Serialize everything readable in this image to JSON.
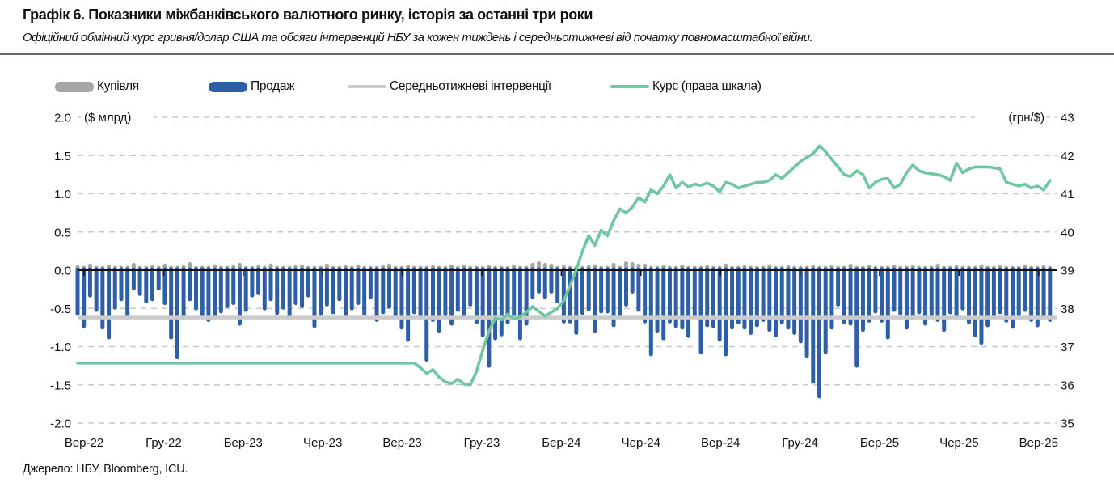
{
  "header": {
    "title": "Графік 6. Показники міжбанківського валютного ринку, історія за останні три роки",
    "subtitle": "Офіційний обмінний курс гривня/долар США та обсяги інтервенцій НБУ за кожен тиждень і середньотижневі від початку повномасштабної війни."
  },
  "legend": {
    "buy": {
      "label": "Купівля"
    },
    "sell": {
      "label": "Продаж"
    },
    "avg": {
      "label": "Середньотижневі інтервенції"
    },
    "rate": {
      "label": "Курс (права шкала)"
    }
  },
  "source": "Джерело: НБУ, Bloomberg, ICU.",
  "chart_data": {
    "type": "bar",
    "description": "Weekly NBU FX interventions ($bn, left axis) and official UAH/USD exchange rate (right axis), Sep-2022 to Sep-2025",
    "weeks": 157,
    "x_tick_labels": [
      "Вер-22",
      "Гру-22",
      "Бер-23",
      "Чер-23",
      "Вер-23",
      "Гру-23",
      "Бер-24",
      "Чер-24",
      "Вер-24",
      "Гру-24",
      "Бер-25",
      "Чер-25",
      "Вер-25"
    ],
    "left_axis": {
      "unit": "($ млрд)",
      "ticks": [
        "2.0",
        "1.5",
        "1.0",
        "0.5",
        "0.0",
        "-0.5",
        "-1.0",
        "-1.5",
        "-2.0"
      ],
      "range": [
        -2.0,
        2.0
      ]
    },
    "right_axis": {
      "unit": "(грн/$)",
      "ticks": [
        "43",
        "42",
        "41",
        "40",
        "39",
        "38",
        "37",
        "36",
        "35"
      ],
      "range": [
        35,
        43
      ]
    },
    "colors": {
      "sell": "#2E5FA6",
      "buy": "#A6A6A6",
      "avg": "#CBCBCB",
      "rate": "#6FC7A2",
      "grid": "#C5CACE",
      "axis": "#111111"
    },
    "series": {
      "buy": {
        "name": "Купівля",
        "type": "bar",
        "axis": "left",
        "values": [
          0.03,
          0.02,
          0.05,
          0.02,
          0.02,
          0.04,
          0.02,
          0.02,
          0.02,
          0.06,
          0.02,
          0.02,
          0.03,
          0.02,
          0.05,
          0.02,
          0.02,
          0.03,
          0.07,
          0.02,
          0.02,
          0.02,
          0.04,
          0.02,
          0.02,
          0.03,
          0.06,
          0.02,
          0.02,
          0.03,
          0.02,
          0.05,
          0.02,
          0.02,
          0.02,
          0.03,
          0.04,
          0.02,
          0.02,
          0.02,
          0.05,
          0.02,
          0.02,
          0.03,
          0.02,
          0.04,
          0.02,
          0.02,
          0.02,
          0.03,
          0.05,
          0.02,
          0.02,
          0.03,
          0.02,
          0.02,
          0.02,
          0.03,
          0.02,
          0.02,
          0.04,
          0.02,
          0.04,
          0.02,
          0.02,
          0.02,
          0.03,
          0.02,
          0.02,
          0.02,
          0.04,
          0.02,
          0.02,
          0.06,
          0.08,
          0.06,
          0.05,
          0.02,
          0.03,
          0.02,
          0.02,
          0.02,
          0.03,
          0.04,
          0.02,
          0.02,
          0.06,
          0.02,
          0.08,
          0.07,
          0.05,
          0.05,
          0.02,
          0.02,
          0.03,
          0.02,
          0.02,
          0.04,
          0.02,
          0.02,
          0.02,
          0.03,
          0.02,
          0.02,
          0.05,
          0.02,
          0.02,
          0.03,
          0.02,
          0.02,
          0.02,
          0.04,
          0.02,
          0.02,
          0.03,
          0.02,
          0.02,
          0.02,
          0.03,
          0.02,
          0.02,
          0.03,
          0.02,
          0.02,
          0.05,
          0.02,
          0.02,
          0.03,
          0.02,
          0.02,
          0.02,
          0.04,
          0.02,
          0.02,
          0.03,
          0.02,
          0.02,
          0.02,
          0.05,
          0.02,
          0.02,
          0.03,
          0.02,
          0.02,
          0.02,
          0.04,
          0.02,
          0.02,
          0.03,
          0.02,
          0.02,
          0.02,
          0.04,
          0.02,
          0.02,
          0.03,
          0.02
        ]
      },
      "sell": {
        "name": "Продаж",
        "type": "bar",
        "axis": "left",
        "values": [
          -0.57,
          -0.73,
          -0.33,
          -0.52,
          -0.75,
          -0.88,
          -0.49,
          -0.38,
          -0.62,
          -0.24,
          -0.31,
          -0.41,
          -0.38,
          -0.24,
          -0.43,
          -0.88,
          -1.14,
          -0.62,
          -0.38,
          -0.5,
          -0.61,
          -0.65,
          -0.59,
          -0.54,
          -0.47,
          -0.43,
          -0.7,
          -0.52,
          -0.33,
          -0.3,
          -0.5,
          -0.38,
          -0.56,
          -0.49,
          -0.62,
          -0.43,
          -0.47,
          -0.33,
          -0.73,
          -0.57,
          -0.45,
          -0.55,
          -0.38,
          -0.62,
          -0.5,
          -0.43,
          -0.57,
          -0.35,
          -0.65,
          -0.55,
          -0.48,
          -0.6,
          -0.75,
          -0.91,
          -0.55,
          -0.62,
          -1.17,
          -0.65,
          -0.8,
          -0.58,
          -0.7,
          -0.52,
          -0.6,
          -0.45,
          -0.68,
          -0.85,
          -1.25,
          -0.89,
          -0.84,
          -0.68,
          -0.59,
          -0.89,
          -0.7,
          -0.35,
          -0.28,
          -0.35,
          -0.28,
          -0.41,
          -0.67,
          -0.67,
          -0.82,
          -0.56,
          -0.51,
          -0.8,
          -0.54,
          -0.54,
          -0.72,
          -0.61,
          -0.45,
          -0.28,
          -0.52,
          -0.67,
          -1.1,
          -0.8,
          -0.89,
          -0.67,
          -0.73,
          -0.75,
          -0.86,
          -0.59,
          -1.07,
          -0.72,
          -0.73,
          -0.91,
          -1.1,
          -0.75,
          -0.68,
          -0.75,
          -0.82,
          -0.72,
          -0.65,
          -0.78,
          -0.85,
          -0.68,
          -0.75,
          -0.82,
          -0.93,
          -1.12,
          -1.46,
          -1.65,
          -1.07,
          -0.75,
          -0.45,
          -0.68,
          -0.7,
          -1.25,
          -0.78,
          -0.66,
          -0.54,
          -0.66,
          -0.88,
          -0.52,
          -0.57,
          -0.75,
          -0.62,
          -0.55,
          -0.7,
          -0.58,
          -0.65,
          -0.78,
          -0.55,
          -0.62,
          -0.5,
          -0.68,
          -0.85,
          -0.95,
          -0.72,
          -0.6,
          -0.55,
          -0.66,
          -0.74,
          -0.58,
          -0.52,
          -0.65,
          -0.72,
          -0.6,
          -0.65
        ]
      },
      "avg": {
        "name": "Середньотижневі інтервенції",
        "type": "hline",
        "axis": "left",
        "value": -0.62
      },
      "rate": {
        "name": "Курс (права шкала)",
        "type": "line",
        "axis": "right",
        "values": [
          36.57,
          36.57,
          36.57,
          36.57,
          36.57,
          36.57,
          36.57,
          36.57,
          36.57,
          36.57,
          36.57,
          36.57,
          36.57,
          36.57,
          36.57,
          36.57,
          36.57,
          36.57,
          36.57,
          36.57,
          36.57,
          36.57,
          36.57,
          36.57,
          36.57,
          36.57,
          36.57,
          36.57,
          36.57,
          36.57,
          36.57,
          36.57,
          36.57,
          36.57,
          36.57,
          36.57,
          36.57,
          36.57,
          36.57,
          36.57,
          36.57,
          36.57,
          36.57,
          36.57,
          36.57,
          36.57,
          36.57,
          36.57,
          36.57,
          36.57,
          36.57,
          36.57,
          36.57,
          36.57,
          36.57,
          36.45,
          36.3,
          36.4,
          36.2,
          36.08,
          36.03,
          36.15,
          36.02,
          36.0,
          36.35,
          36.9,
          37.4,
          37.75,
          37.7,
          37.85,
          37.72,
          37.78,
          37.9,
          38.05,
          37.92,
          37.8,
          37.9,
          38.0,
          38.2,
          38.6,
          39.0,
          39.5,
          39.9,
          39.65,
          40.05,
          39.9,
          40.3,
          40.6,
          40.5,
          40.65,
          40.9,
          40.78,
          41.1,
          41.0,
          41.2,
          41.5,
          41.15,
          41.3,
          41.18,
          41.25,
          41.22,
          41.28,
          41.2,
          41.05,
          41.3,
          41.25,
          41.15,
          41.2,
          41.25,
          41.3,
          41.3,
          41.35,
          41.5,
          41.4,
          41.55,
          41.7,
          41.85,
          41.95,
          42.05,
          42.25,
          42.1,
          41.9,
          41.7,
          41.5,
          41.45,
          41.6,
          41.5,
          41.15,
          41.3,
          41.38,
          41.4,
          41.15,
          41.25,
          41.55,
          41.75,
          41.6,
          41.55,
          41.52,
          41.5,
          41.45,
          41.35,
          41.8,
          41.55,
          41.65,
          41.7,
          41.7,
          41.7,
          41.68,
          41.65,
          41.3,
          41.25,
          41.2,
          41.25,
          41.15,
          41.2,
          41.1,
          41.35
        ]
      }
    }
  }
}
